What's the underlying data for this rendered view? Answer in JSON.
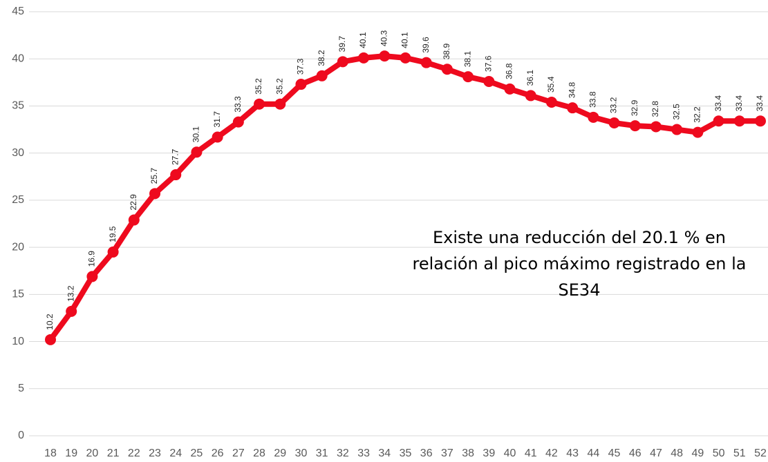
{
  "chart_data": {
    "type": "line",
    "categories": [
      "18",
      "19",
      "20",
      "21",
      "22",
      "23",
      "24",
      "25",
      "26",
      "27",
      "28",
      "29",
      "30",
      "31",
      "32",
      "33",
      "34",
      "35",
      "36",
      "37",
      "38",
      "39",
      "40",
      "41",
      "42",
      "43",
      "44",
      "45",
      "46",
      "47",
      "48",
      "49",
      "50",
      "51",
      "52"
    ],
    "series": [
      {
        "color": "#ee0a1e",
        "values": [
          10.2,
          13.2,
          16.9,
          19.5,
          22.9,
          25.7,
          27.7,
          30.1,
          31.7,
          33.3,
          35.2,
          35.2,
          37.3,
          38.2,
          39.7,
          40.1,
          40.3,
          40.1,
          39.6,
          38.9,
          38.1,
          37.6,
          36.8,
          36.1,
          35.4,
          34.8,
          33.8,
          33.2,
          32.9,
          32.8,
          32.5,
          32.2,
          33.4,
          33.4,
          33.4
        ]
      }
    ],
    "ylim": [
      0,
      45
    ],
    "yticks": [
      0,
      5,
      10,
      15,
      20,
      25,
      30,
      35,
      40,
      45
    ],
    "grid": true,
    "annotation": [
      "Existe una reducción del 20.1 % en",
      "relación al pico máximo registrado en la",
      "SE34"
    ]
  }
}
